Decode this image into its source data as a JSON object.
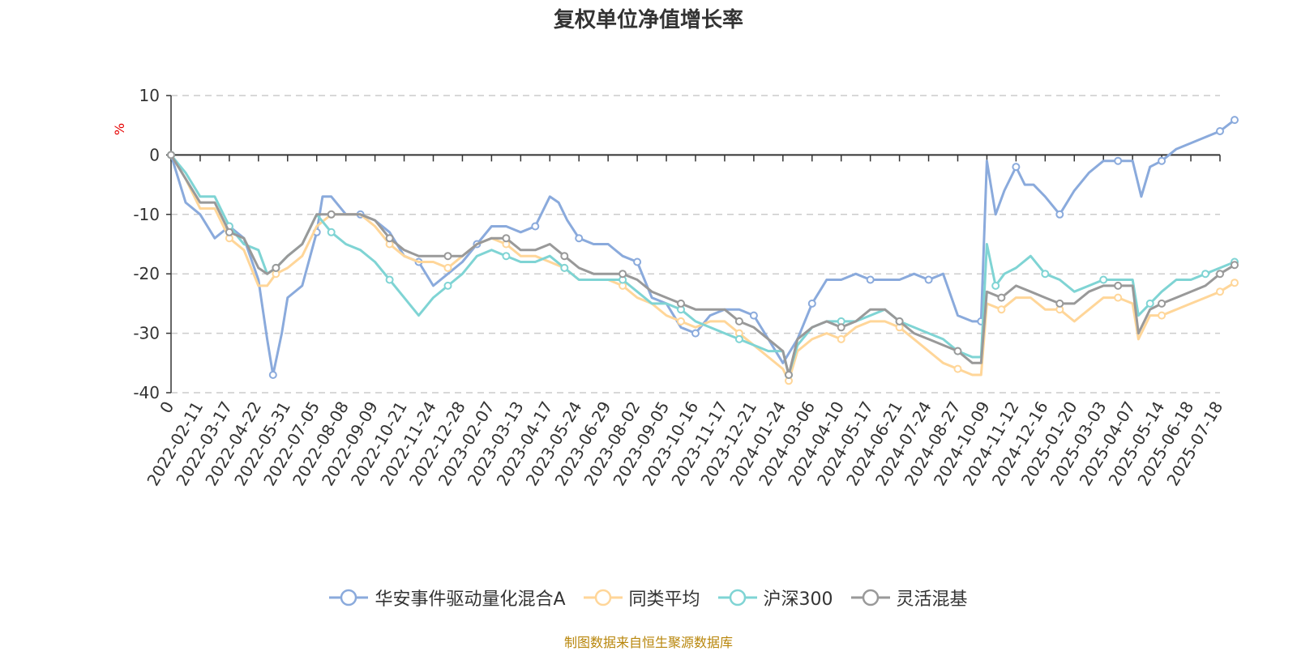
{
  "chart_data": {
    "type": "line",
    "title": "复权单位净值增长率",
    "ylabel": "%",
    "ylim": [
      -40,
      10
    ],
    "yticks": [
      10,
      0,
      -10,
      -20,
      -30,
      -40
    ],
    "grid": true,
    "legend_position": "bottom-center",
    "x_tick_labels": [
      "0",
      "2022-02-11",
      "2022-03-17",
      "2022-04-22",
      "2022-05-31",
      "2022-07-05",
      "2022-08-08",
      "2022-09-09",
      "2022-10-21",
      "2022-11-24",
      "2022-12-28",
      "2023-02-07",
      "2023-03-13",
      "2023-04-17",
      "2023-05-24",
      "2023-06-29",
      "2023-08-02",
      "2023-09-05",
      "2023-10-16",
      "2023-11-17",
      "2023-12-21",
      "2024-01-24",
      "2024-03-06",
      "2024-04-10",
      "2024-05-17",
      "2024-06-21",
      "2024-07-24",
      "2024-08-27",
      "2024-10-09",
      "2024-11-12",
      "2024-12-16",
      "2025-01-20",
      "2025-03-03",
      "2025-04-07",
      "2025-05-14",
      "2025-06-18",
      "2025-07-18"
    ],
    "series": [
      {
        "name": "华安事件驱动量化混合A",
        "color": "#8aaadc",
        "points": [
          [
            0,
            0
          ],
          [
            0.5,
            -8
          ],
          [
            1,
            -10
          ],
          [
            1.5,
            -14
          ],
          [
            2,
            -12
          ],
          [
            2.5,
            -14
          ],
          [
            3,
            -21
          ],
          [
            3.3,
            -31
          ],
          [
            3.5,
            -37
          ],
          [
            3.8,
            -30
          ],
          [
            4,
            -24
          ],
          [
            4.5,
            -22
          ],
          [
            5,
            -13
          ],
          [
            5.2,
            -7
          ],
          [
            5.5,
            -7
          ],
          [
            6,
            -10
          ],
          [
            6.5,
            -10
          ],
          [
            7,
            -11
          ],
          [
            7.5,
            -13
          ],
          [
            8,
            -17
          ],
          [
            8.5,
            -18
          ],
          [
            9,
            -22
          ],
          [
            9.5,
            -20
          ],
          [
            10,
            -18
          ],
          [
            10.5,
            -15
          ],
          [
            11,
            -12
          ],
          [
            11.5,
            -12
          ],
          [
            12,
            -13
          ],
          [
            12.5,
            -12
          ],
          [
            13,
            -7
          ],
          [
            13.3,
            -8
          ],
          [
            13.6,
            -11
          ],
          [
            14,
            -14
          ],
          [
            14.5,
            -15
          ],
          [
            15,
            -15
          ],
          [
            15.5,
            -17
          ],
          [
            16,
            -18
          ],
          [
            16.5,
            -24
          ],
          [
            17,
            -25
          ],
          [
            17.5,
            -29
          ],
          [
            18,
            -30
          ],
          [
            18.5,
            -27
          ],
          [
            19,
            -26
          ],
          [
            19.5,
            -26
          ],
          [
            20,
            -27
          ],
          [
            20.5,
            -31
          ],
          [
            21,
            -35
          ],
          [
            21.5,
            -31
          ],
          [
            22,
            -25
          ],
          [
            22.5,
            -21
          ],
          [
            23,
            -21
          ],
          [
            23.5,
            -20
          ],
          [
            24,
            -21
          ],
          [
            24.5,
            -21
          ],
          [
            25,
            -21
          ],
          [
            25.5,
            -20
          ],
          [
            26,
            -21
          ],
          [
            26.5,
            -20
          ],
          [
            27,
            -27
          ],
          [
            27.5,
            -28
          ],
          [
            27.8,
            -28
          ],
          [
            28,
            -1
          ],
          [
            28.3,
            -10
          ],
          [
            28.6,
            -6
          ],
          [
            29,
            -2
          ],
          [
            29.3,
            -5
          ],
          [
            29.6,
            -5
          ],
          [
            30,
            -7
          ],
          [
            30.5,
            -10
          ],
          [
            31,
            -6
          ],
          [
            31.5,
            -3
          ],
          [
            32,
            -1
          ],
          [
            32.5,
            -1
          ],
          [
            33,
            -1
          ],
          [
            33.3,
            -7
          ],
          [
            33.6,
            -2
          ],
          [
            34,
            -1
          ],
          [
            34.5,
            1
          ],
          [
            35,
            2
          ],
          [
            35.5,
            3
          ],
          [
            36,
            4
          ],
          [
            36.5,
            5.9
          ]
        ]
      },
      {
        "name": "同类平均",
        "color": "#ffd699",
        "points": [
          [
            0,
            0
          ],
          [
            0.5,
            -4
          ],
          [
            1,
            -9
          ],
          [
            1.5,
            -9
          ],
          [
            2,
            -14
          ],
          [
            2.5,
            -16
          ],
          [
            3,
            -22
          ],
          [
            3.3,
            -22
          ],
          [
            3.6,
            -20
          ],
          [
            4,
            -19
          ],
          [
            4.5,
            -17
          ],
          [
            5,
            -12
          ],
          [
            5.5,
            -10
          ],
          [
            6,
            -10
          ],
          [
            6.5,
            -10
          ],
          [
            7,
            -12
          ],
          [
            7.5,
            -15
          ],
          [
            8,
            -17
          ],
          [
            8.5,
            -18
          ],
          [
            9,
            -18
          ],
          [
            9.5,
            -19
          ],
          [
            10,
            -17
          ],
          [
            10.5,
            -15
          ],
          [
            11,
            -14
          ],
          [
            11.5,
            -15
          ],
          [
            12,
            -17
          ],
          [
            12.5,
            -17
          ],
          [
            13,
            -18
          ],
          [
            13.5,
            -19
          ],
          [
            14,
            -21
          ],
          [
            14.5,
            -21
          ],
          [
            15,
            -21
          ],
          [
            15.5,
            -22
          ],
          [
            16,
            -24
          ],
          [
            16.5,
            -25
          ],
          [
            17,
            -27
          ],
          [
            17.5,
            -28
          ],
          [
            18,
            -29
          ],
          [
            18.5,
            -28
          ],
          [
            19,
            -28
          ],
          [
            19.5,
            -30
          ],
          [
            20,
            -32
          ],
          [
            20.5,
            -34
          ],
          [
            21,
            -36
          ],
          [
            21.2,
            -38
          ],
          [
            21.5,
            -33
          ],
          [
            22,
            -31
          ],
          [
            22.5,
            -30
          ],
          [
            23,
            -31
          ],
          [
            23.5,
            -29
          ],
          [
            24,
            -28
          ],
          [
            24.5,
            -28
          ],
          [
            25,
            -29
          ],
          [
            25.5,
            -31
          ],
          [
            26,
            -33
          ],
          [
            26.5,
            -35
          ],
          [
            27,
            -36
          ],
          [
            27.5,
            -37
          ],
          [
            27.8,
            -37
          ],
          [
            28,
            -25
          ],
          [
            28.5,
            -26
          ],
          [
            29,
            -24
          ],
          [
            29.5,
            -24
          ],
          [
            30,
            -26
          ],
          [
            30.5,
            -26
          ],
          [
            31,
            -28
          ],
          [
            31.5,
            -26
          ],
          [
            32,
            -24
          ],
          [
            32.5,
            -24
          ],
          [
            33,
            -25
          ],
          [
            33.2,
            -31
          ],
          [
            33.6,
            -27
          ],
          [
            34,
            -27
          ],
          [
            34.5,
            -26
          ],
          [
            35,
            -25
          ],
          [
            35.5,
            -24
          ],
          [
            36,
            -23
          ],
          [
            36.5,
            -21.5
          ]
        ]
      },
      {
        "name": "沪深300",
        "color": "#7fd4d4",
        "points": [
          [
            0,
            0
          ],
          [
            0.5,
            -3
          ],
          [
            1,
            -7
          ],
          [
            1.5,
            -7
          ],
          [
            2,
            -12
          ],
          [
            2.5,
            -15
          ],
          [
            3,
            -16
          ],
          [
            3.3,
            -20
          ],
          [
            3.6,
            -19
          ],
          [
            4,
            -17
          ],
          [
            4.5,
            -15
          ],
          [
            5,
            -10
          ],
          [
            5.5,
            -13
          ],
          [
            6,
            -15
          ],
          [
            6.5,
            -16
          ],
          [
            7,
            -18
          ],
          [
            7.5,
            -21
          ],
          [
            8,
            -24
          ],
          [
            8.5,
            -27
          ],
          [
            9,
            -24
          ],
          [
            9.5,
            -22
          ],
          [
            10,
            -20
          ],
          [
            10.5,
            -17
          ],
          [
            11,
            -16
          ],
          [
            11.5,
            -17
          ],
          [
            12,
            -18
          ],
          [
            12.5,
            -18
          ],
          [
            13,
            -17
          ],
          [
            13.5,
            -19
          ],
          [
            14,
            -21
          ],
          [
            14.5,
            -21
          ],
          [
            15,
            -21
          ],
          [
            15.5,
            -21
          ],
          [
            16,
            -23
          ],
          [
            16.5,
            -25
          ],
          [
            17,
            -25
          ],
          [
            17.5,
            -26
          ],
          [
            18,
            -28
          ],
          [
            18.5,
            -29
          ],
          [
            19,
            -30
          ],
          [
            19.5,
            -31
          ],
          [
            20,
            -32
          ],
          [
            20.5,
            -33
          ],
          [
            21,
            -33
          ],
          [
            21.2,
            -37
          ],
          [
            21.5,
            -32
          ],
          [
            22,
            -29
          ],
          [
            22.5,
            -28
          ],
          [
            23,
            -28
          ],
          [
            23.5,
            -28
          ],
          [
            24,
            -27
          ],
          [
            24.5,
            -26
          ],
          [
            25,
            -28
          ],
          [
            25.5,
            -29
          ],
          [
            26,
            -30
          ],
          [
            26.5,
            -31
          ],
          [
            27,
            -33
          ],
          [
            27.5,
            -34
          ],
          [
            27.8,
            -34
          ],
          [
            28,
            -15
          ],
          [
            28.3,
            -22
          ],
          [
            28.6,
            -20
          ],
          [
            29,
            -19
          ],
          [
            29.5,
            -17
          ],
          [
            30,
            -20
          ],
          [
            30.5,
            -21
          ],
          [
            31,
            -23
          ],
          [
            31.5,
            -22
          ],
          [
            32,
            -21
          ],
          [
            32.5,
            -21
          ],
          [
            33,
            -21
          ],
          [
            33.2,
            -27
          ],
          [
            33.6,
            -25
          ],
          [
            34,
            -23
          ],
          [
            34.5,
            -21
          ],
          [
            35,
            -21
          ],
          [
            35.5,
            -20
          ],
          [
            36,
            -19
          ],
          [
            36.5,
            -18
          ]
        ]
      },
      {
        "name": "灵活混基",
        "color": "#999999",
        "points": [
          [
            0,
            0
          ],
          [
            0.5,
            -4
          ],
          [
            1,
            -8
          ],
          [
            1.5,
            -8
          ],
          [
            2,
            -13
          ],
          [
            2.5,
            -14
          ],
          [
            3,
            -19
          ],
          [
            3.3,
            -20
          ],
          [
            3.6,
            -19
          ],
          [
            4,
            -17
          ],
          [
            4.5,
            -15
          ],
          [
            5,
            -10
          ],
          [
            5.5,
            -10
          ],
          [
            6,
            -10
          ],
          [
            6.5,
            -10
          ],
          [
            7,
            -11
          ],
          [
            7.5,
            -14
          ],
          [
            8,
            -16
          ],
          [
            8.5,
            -17
          ],
          [
            9,
            -17
          ],
          [
            9.5,
            -17
          ],
          [
            10,
            -17
          ],
          [
            10.5,
            -15
          ],
          [
            11,
            -14
          ],
          [
            11.5,
            -14
          ],
          [
            12,
            -16
          ],
          [
            12.5,
            -16
          ],
          [
            13,
            -15
          ],
          [
            13.5,
            -17
          ],
          [
            14,
            -19
          ],
          [
            14.5,
            -20
          ],
          [
            15,
            -20
          ],
          [
            15.5,
            -20
          ],
          [
            16,
            -21
          ],
          [
            16.5,
            -23
          ],
          [
            17,
            -24
          ],
          [
            17.5,
            -25
          ],
          [
            18,
            -26
          ],
          [
            18.5,
            -26
          ],
          [
            19,
            -26
          ],
          [
            19.5,
            -28
          ],
          [
            20,
            -29
          ],
          [
            20.5,
            -31
          ],
          [
            21,
            -33
          ],
          [
            21.2,
            -37
          ],
          [
            21.5,
            -31
          ],
          [
            22,
            -29
          ],
          [
            22.5,
            -28
          ],
          [
            23,
            -29
          ],
          [
            23.5,
            -28
          ],
          [
            24,
            -26
          ],
          [
            24.5,
            -26
          ],
          [
            25,
            -28
          ],
          [
            25.5,
            -30
          ],
          [
            26,
            -31
          ],
          [
            26.5,
            -32
          ],
          [
            27,
            -33
          ],
          [
            27.5,
            -35
          ],
          [
            27.8,
            -35
          ],
          [
            28,
            -23
          ],
          [
            28.5,
            -24
          ],
          [
            29,
            -22
          ],
          [
            29.5,
            -23
          ],
          [
            30,
            -24
          ],
          [
            30.5,
            -25
          ],
          [
            31,
            -25
          ],
          [
            31.5,
            -23
          ],
          [
            32,
            -22
          ],
          [
            32.5,
            -22
          ],
          [
            33,
            -22
          ],
          [
            33.2,
            -30
          ],
          [
            33.6,
            -26
          ],
          [
            34,
            -25
          ],
          [
            34.5,
            -24
          ],
          [
            35,
            -23
          ],
          [
            35.5,
            -22
          ],
          [
            36,
            -20
          ],
          [
            36.5,
            -18.5
          ]
        ]
      }
    ]
  },
  "source_note": "制图数据来自恒生聚源数据库"
}
